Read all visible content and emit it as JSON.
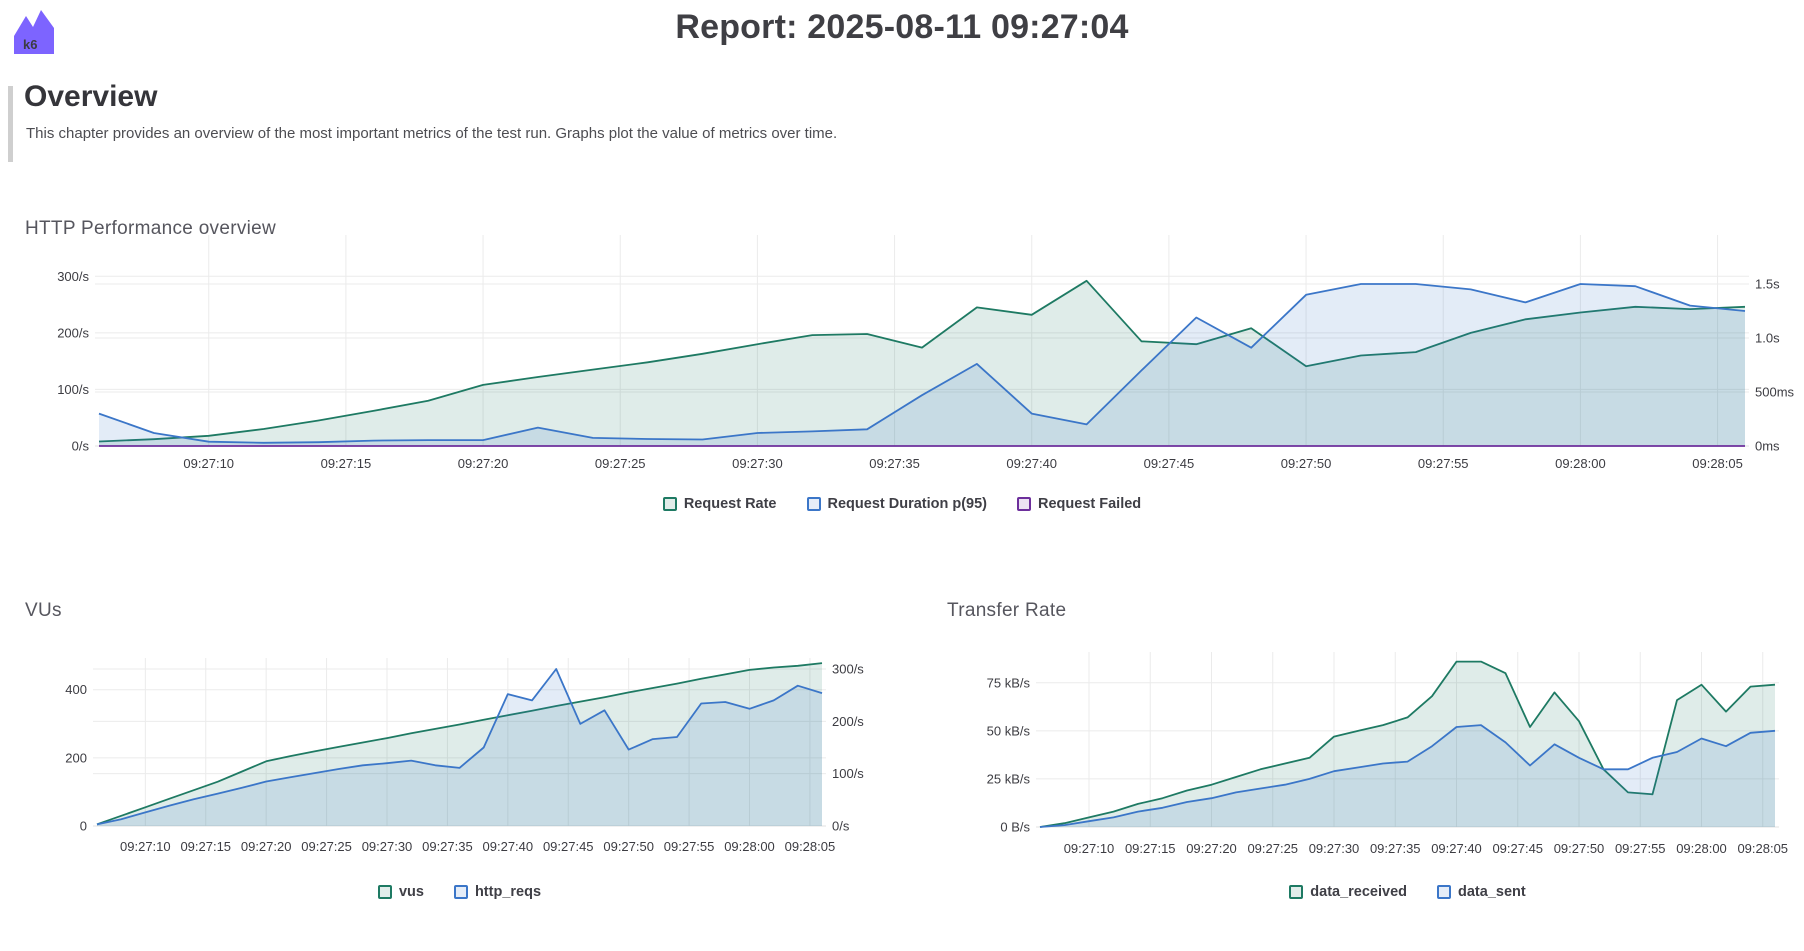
{
  "header": {
    "title": "Report: 2025-08-11 09:27:04",
    "logo_text": "k6",
    "logo_color": "#7d64ff"
  },
  "section": {
    "title": "Overview",
    "description": "This chapter provides an overview of the most important metrics of the test run. Graphs plot the value of metrics over time."
  },
  "colors": {
    "green": "#1e7a63",
    "blue": "#3b76c8",
    "purple": "#6d2f9c",
    "grid": "#ebebeb",
    "baseline": "#e2e2e2"
  },
  "x_tick_labels": [
    "09:27:10",
    "09:27:15",
    "09:27:20",
    "09:27:25",
    "09:27:30",
    "09:27:35",
    "09:27:40",
    "09:27:45",
    "09:27:50",
    "09:27:55",
    "09:28:00",
    "09:28:05"
  ],
  "chart_data": [
    {
      "type": "area",
      "title": "HTTP Performance overview",
      "xlim": [
        0,
        60
      ],
      "x": [
        0,
        2,
        4,
        6,
        8,
        10,
        12,
        14,
        16,
        18,
        20,
        22,
        24,
        26,
        28,
        30,
        32,
        34,
        36,
        38,
        40,
        42,
        44,
        46,
        48,
        50,
        52,
        54,
        56,
        58,
        60
      ],
      "x_tick_values": [
        4,
        9,
        14,
        19,
        24,
        29,
        34,
        39,
        44,
        49,
        54,
        59
      ],
      "axes": {
        "left": {
          "max": 373,
          "ticks": [
            {
              "v": 300,
              "label": "300/s"
            },
            {
              "v": 200,
              "label": "200/s"
            },
            {
              "v": 100,
              "label": "100/s"
            },
            {
              "v": 0,
              "label": "0/s"
            }
          ]
        },
        "right": {
          "max": 1954,
          "ticks": [
            {
              "v": 1500,
              "label": "1.5s"
            },
            {
              "v": 1000,
              "label": "1.0s"
            },
            {
              "v": 500,
              "label": "500ms"
            },
            {
              "v": 0,
              "label": "0ms"
            }
          ]
        }
      },
      "series": [
        {
          "name": "Request Rate",
          "axis": "left",
          "color": "#1e7a63",
          "values": [
            8,
            12,
            18,
            30,
            45,
            62,
            80,
            108,
            122,
            135,
            148,
            163,
            180,
            196,
            198,
            174,
            245,
            232,
            292,
            185,
            180,
            208,
            141,
            160,
            166,
            200,
            224,
            236,
            246,
            242,
            246
          ]
        },
        {
          "name": "Request Duration p(95)",
          "axis": "right",
          "color": "#3b76c8",
          "values": [
            300,
            120,
            40,
            30,
            35,
            50,
            55,
            55,
            170,
            75,
            65,
            60,
            120,
            135,
            155,
            470,
            760,
            300,
            200,
            700,
            1190,
            910,
            1400,
            1500,
            1500,
            1450,
            1330,
            1500,
            1480,
            1300,
            1250
          ]
        },
        {
          "name": "Request Failed",
          "axis": "left",
          "color": "#6d2f9c",
          "values": [
            0,
            0,
            0,
            0,
            0,
            0,
            0,
            0,
            0,
            0,
            0,
            0,
            0,
            0,
            0,
            0,
            0,
            0,
            0,
            0,
            0,
            0,
            0,
            0,
            0,
            0,
            0,
            0,
            0,
            0,
            0
          ]
        }
      ]
    },
    {
      "type": "area",
      "title": "VUs",
      "xlim": [
        0,
        60
      ],
      "x": [
        0,
        2,
        4,
        6,
        8,
        10,
        12,
        14,
        16,
        18,
        20,
        22,
        24,
        26,
        28,
        30,
        32,
        34,
        36,
        38,
        40,
        42,
        44,
        46,
        48,
        50,
        52,
        54,
        56,
        58,
        60
      ],
      "x_tick_values": [
        4,
        9,
        14,
        19,
        24,
        29,
        34,
        39,
        44,
        49,
        54,
        59
      ],
      "axes": {
        "left": {
          "max": 493,
          "ticks": [
            {
              "v": 400,
              "label": "400"
            },
            {
              "v": 200,
              "label": "200"
            },
            {
              "v": 0,
              "label": "0"
            }
          ]
        },
        "right": {
          "max": 321,
          "ticks": [
            {
              "v": 300,
              "label": "300/s"
            },
            {
              "v": 200,
              "label": "200/s"
            },
            {
              "v": 100,
              "label": "100/s"
            },
            {
              "v": 0,
              "label": "0/s"
            }
          ]
        }
      },
      "series": [
        {
          "name": "vus",
          "axis": "left",
          "color": "#1e7a63",
          "values": [
            5,
            30,
            55,
            80,
            105,
            130,
            160,
            190,
            205,
            219,
            232,
            245,
            258,
            272,
            285,
            298,
            312,
            325,
            338,
            352,
            365,
            378,
            392,
            405,
            418,
            432,
            445,
            458,
            465,
            470,
            478
          ]
        },
        {
          "name": "http_reqs",
          "axis": "right",
          "color": "#3b76c8",
          "values": [
            3,
            13,
            26,
            39,
            51,
            62,
            73,
            85,
            93,
            101,
            109,
            116,
            120,
            125,
            116,
            111,
            150,
            252,
            240,
            300,
            195,
            221,
            146,
            166,
            170,
            234,
            237,
            224,
            240,
            268,
            254
          ]
        }
      ]
    },
    {
      "type": "area",
      "title": "Transfer Rate",
      "xlim": [
        0,
        60
      ],
      "x": [
        0,
        2,
        4,
        6,
        8,
        10,
        12,
        14,
        16,
        18,
        20,
        22,
        24,
        26,
        28,
        30,
        32,
        34,
        36,
        38,
        40,
        42,
        44,
        46,
        48,
        50,
        52,
        54,
        56,
        58,
        60
      ],
      "x_tick_values": [
        4,
        9,
        14,
        19,
        24,
        29,
        34,
        39,
        44,
        49,
        54,
        59
      ],
      "axes": {
        "left": {
          "max": 91,
          "ticks": [
            {
              "v": 75,
              "label": "75 kB/s"
            },
            {
              "v": 50,
              "label": "50 kB/s"
            },
            {
              "v": 25,
              "label": "25 kB/s"
            },
            {
              "v": 0,
              "label": "0 B/s"
            }
          ]
        },
        "right": null
      },
      "series": [
        {
          "name": "data_received",
          "axis": "left",
          "color": "#1e7a63",
          "values": [
            0,
            2,
            5,
            8,
            12,
            15,
            19,
            22,
            26,
            30,
            33,
            36,
            47,
            50,
            53,
            57,
            68,
            86,
            86,
            80,
            52,
            70,
            55,
            30,
            18,
            17,
            66,
            74,
            60,
            73,
            74
          ]
        },
        {
          "name": "data_sent",
          "axis": "left",
          "color": "#3b76c8",
          "values": [
            0,
            1,
            3,
            5,
            8,
            10,
            13,
            15,
            18,
            20,
            22,
            25,
            29,
            31,
            33,
            34,
            42,
            52,
            53,
            44,
            32,
            43,
            36,
            30,
            30,
            36,
            39,
            46,
            42,
            49,
            50
          ]
        }
      ]
    }
  ]
}
